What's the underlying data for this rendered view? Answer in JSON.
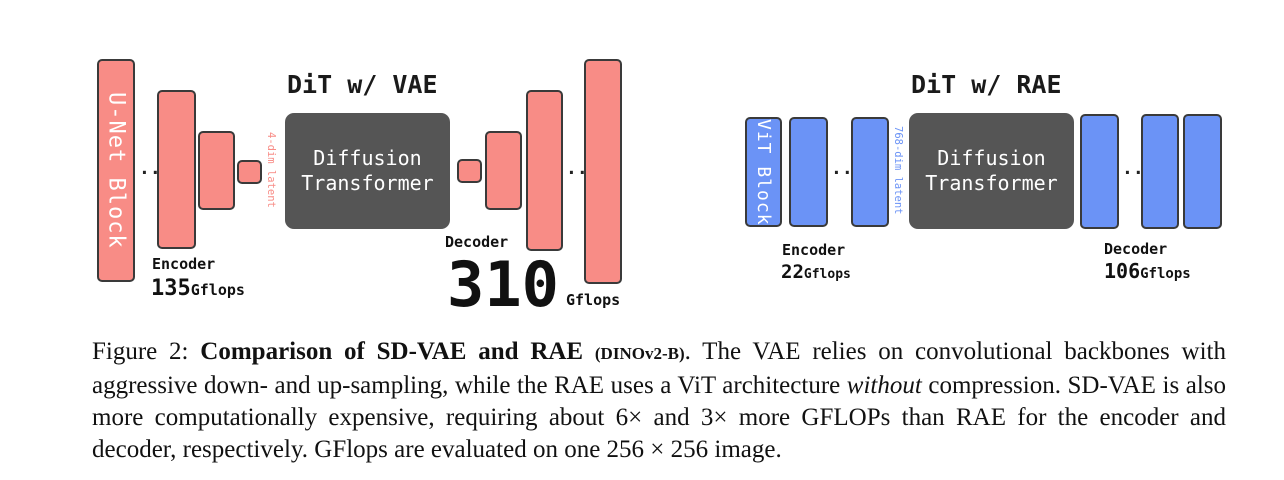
{
  "vae": {
    "title": "DiT w/ VAE",
    "unet_label": "U-Net Block",
    "latent_label": "4-dim latent",
    "dit_label": "Diffusion\nTransformer",
    "encoder_label": "Encoder",
    "encoder_flops": "135",
    "encoder_unit": "Gflops",
    "decoder_label": "Decoder",
    "decoder_flops": "310",
    "decoder_unit": "Gflops",
    "dots": "...",
    "color": "#f88c86"
  },
  "rae": {
    "title": "DiT w/ RAE",
    "vit_label": "ViT Block",
    "latent_label": "768-dim latent",
    "dit_label": "Diffusion\nTransformer",
    "encoder_label": "Encoder",
    "encoder_flops": "22",
    "encoder_unit": "Gflops",
    "decoder_label": "Decoder",
    "decoder_flops": "106",
    "decoder_unit": "Gflops",
    "dots": "...",
    "color": "#6b93f6"
  },
  "caption": {
    "prefix": "Figure 2: ",
    "bold": "Comparison of SD-VAE and RAE ",
    "bold_small": "(DINOv2-B)",
    "text1": ". The VAE relies on convolutional backbones with aggressive down- and up-sampling, while the RAE uses a ViT architecture ",
    "italic": "without",
    "text2": " compression. SD-VAE is also more computationally expensive, requiring about 6× and 3× more GFLOPs than RAE for the encoder and decoder, respectively. GFlops are evaluated on one ",
    "math": "256 × 256",
    "text3": " image."
  }
}
